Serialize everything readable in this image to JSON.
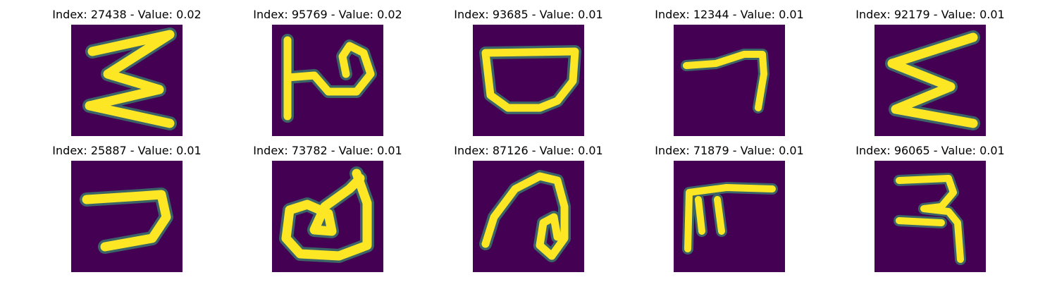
{
  "panels": [
    {
      "title": "Index: 27438 - Value: 0.02",
      "glyph": "zigzag-e"
    },
    {
      "title": "Index: 95769 - Value: 0.02",
      "glyph": "p-hook"
    },
    {
      "title": "Index: 93685 - Value: 0.01",
      "glyph": "bowl"
    },
    {
      "title": "Index: 12344 - Value: 0.01",
      "glyph": "seven-hook"
    },
    {
      "title": "Index: 92179 - Value: 0.01",
      "glyph": "zigzag-e-2"
    },
    {
      "title": "Index: 25887 - Value: 0.01",
      "glyph": "reverse-c"
    },
    {
      "title": "Index: 73782 - Value: 0.01",
      "glyph": "loop-d"
    },
    {
      "title": "Index: 87126 - Value: 0.01",
      "glyph": "spiral"
    },
    {
      "title": "Index: 71879 - Value: 0.01",
      "glyph": "f-shape"
    },
    {
      "title": "Index: 96065 - Value: 0.01",
      "glyph": "three-shape"
    }
  ],
  "colors": {
    "background": "#440154",
    "foreground": "#fde725",
    "edge": "#35b779"
  }
}
